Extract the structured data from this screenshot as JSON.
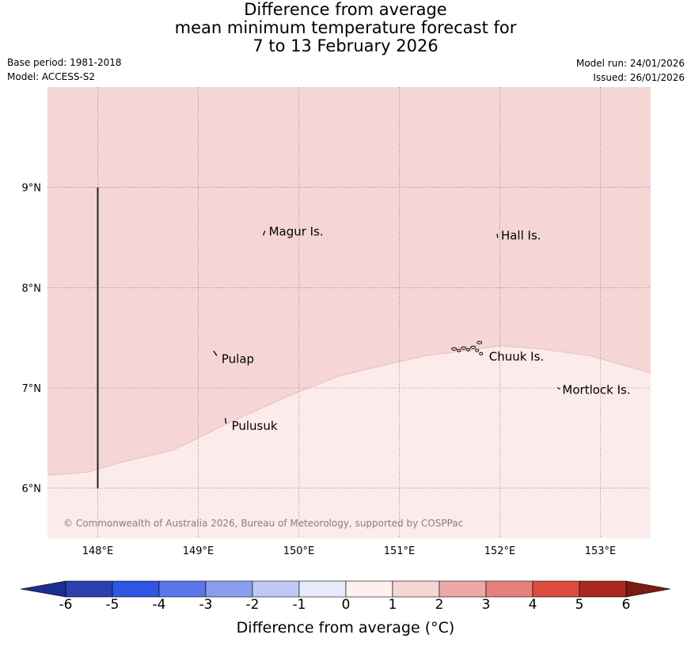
{
  "title": {
    "line1": "Difference from average",
    "line2": "mean minimum temperature forecast for",
    "line3": "7 to 13 February 2026"
  },
  "meta": {
    "base_period": "Base period: 1981-2018",
    "model": "Model: ACCESS-S2",
    "model_run": "Model run: 24/01/2026",
    "issued": "Issued: 26/01/2026"
  },
  "map": {
    "lon_range": [
      147.5,
      153.5
    ],
    "lat_range": [
      5.5,
      10.0
    ],
    "lon_ticks": [
      {
        "value": 148,
        "label": "148°E"
      },
      {
        "value": 149,
        "label": "149°E"
      },
      {
        "value": 150,
        "label": "150°E"
      },
      {
        "value": 151,
        "label": "151°E"
      },
      {
        "value": 152,
        "label": "152°E"
      },
      {
        "value": 153,
        "label": "153°E"
      }
    ],
    "lat_ticks": [
      {
        "value": 6,
        "label": "6°N"
      },
      {
        "value": 7,
        "label": "7°N"
      },
      {
        "value": 8,
        "label": "8°N"
      },
      {
        "value": 9,
        "label": "9°N"
      }
    ],
    "fill_upper_color": "#f5d6d5",
    "fill_lower_color": "#fbebea",
    "contour_boundary": [
      [
        147.5,
        6.13
      ],
      [
        147.9,
        6.16
      ],
      [
        148.2,
        6.25
      ],
      [
        148.75,
        6.38
      ],
      [
        149.3,
        6.65
      ],
      [
        149.9,
        6.92
      ],
      [
        150.4,
        7.12
      ],
      [
        150.9,
        7.24
      ],
      [
        151.25,
        7.32
      ],
      [
        151.65,
        7.37
      ],
      [
        152.0,
        7.42
      ],
      [
        152.4,
        7.39
      ],
      [
        152.9,
        7.32
      ],
      [
        153.5,
        7.15
      ]
    ],
    "meridian_line": {
      "lon": 148.0,
      "lat_from": 6.0,
      "lat_to": 9.0
    },
    "places": [
      {
        "name": "Magur Is.",
        "lon": 149.67,
        "lat": 8.56
      },
      {
        "name": "Hall Is.",
        "lon": 151.98,
        "lat": 8.52
      },
      {
        "name": "Pulap",
        "lon": 149.2,
        "lat": 7.29
      },
      {
        "name": "Chuuk Is.",
        "lon": 151.86,
        "lat": 7.31
      },
      {
        "name": "Mortlock Is.",
        "lon": 152.59,
        "lat": 6.98
      },
      {
        "name": "Pulusuk",
        "lon": 149.3,
        "lat": 6.62
      }
    ],
    "copyright": "© Commonwealth of Australia 2026, Bureau of Meteorology, supported by COSPPac"
  },
  "colorbar": {
    "title": "Difference from average (°C)",
    "ticks": [
      "-6",
      "-5",
      "-4",
      "-3",
      "-2",
      "-1",
      "0",
      "1",
      "2",
      "3",
      "4",
      "5",
      "6"
    ],
    "colors": [
      "#2b3fb0",
      "#2f55e5",
      "#5a76ea",
      "#8a9ef0",
      "#c0c9f5",
      "#e8ebfb",
      "#fdf0ef",
      "#f5d6d5",
      "#eea8a6",
      "#e77f7b",
      "#dc4b3f",
      "#a82820"
    ],
    "under_color": "#1c2f8c",
    "over_color": "#7c1a14"
  }
}
